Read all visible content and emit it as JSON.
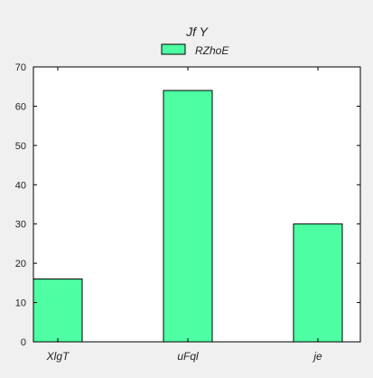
{
  "chart_data": {
    "type": "bar",
    "title": "Jf Y",
    "xlabel": "",
    "ylabel": "",
    "categories": [
      "XlgT",
      "uFql",
      "je"
    ],
    "series": [
      {
        "name": "RZhoE",
        "values": [
          16,
          64,
          30
        ]
      }
    ],
    "ylim": [
      0,
      70
    ],
    "yticks": [
      0,
      10,
      20,
      30,
      40,
      50,
      60,
      70
    ],
    "grid": false,
    "legend_position": "top-center",
    "colors": {
      "bar_fill": "#4dffa2",
      "bar_stroke": "#000000",
      "plot_bg": "#ffffff",
      "figure_bg": "#f0f0f0"
    }
  }
}
